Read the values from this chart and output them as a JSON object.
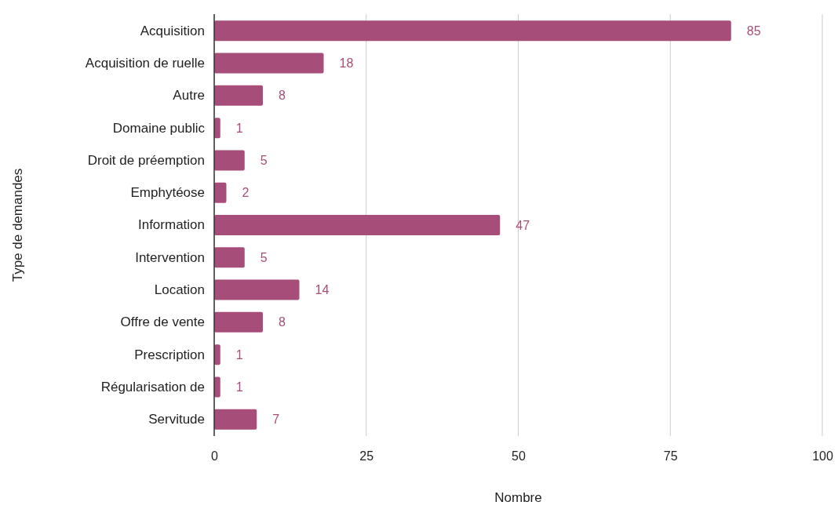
{
  "chart_data": {
    "type": "bar",
    "orientation": "horizontal",
    "xlabel": "Nombre",
    "ylabel": "Type de demandes",
    "categories": [
      "Acquisition",
      "Acquisition de ruelle",
      "Autre",
      "Domaine public",
      "Droit de préemption",
      "Emphytéose",
      "Information",
      "Intervention",
      "Location",
      "Offre de vente",
      "Prescription",
      "Régularisation de",
      "Servitude"
    ],
    "values": [
      85,
      18,
      8,
      1,
      5,
      2,
      47,
      5,
      14,
      8,
      1,
      1,
      7
    ],
    "color": "#a64d79",
    "data_labels": true,
    "xlim": [
      0,
      100
    ],
    "xticks": [
      0,
      25,
      50,
      75,
      100
    ],
    "grid": "x"
  }
}
